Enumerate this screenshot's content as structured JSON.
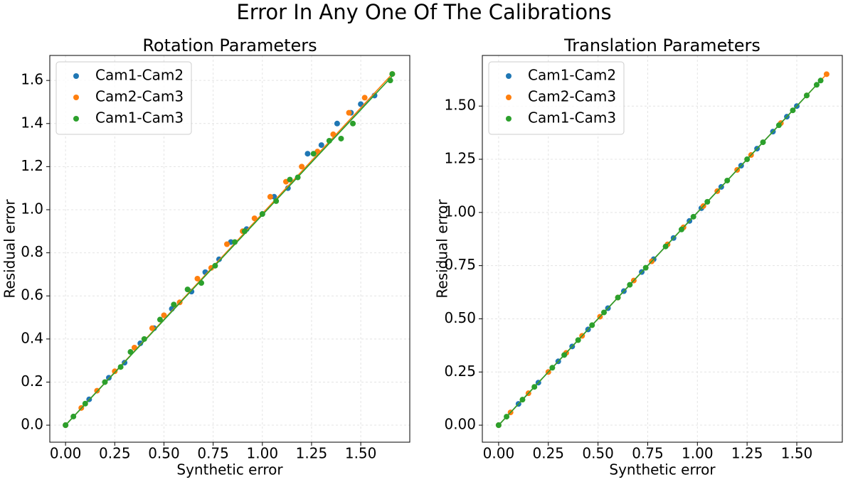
{
  "title": "Error In Any One Of The Calibrations",
  "chart_data": [
    {
      "type": "scatter",
      "title": "Rotation Parameters",
      "x_label": "Synthetic error",
      "y_label": "Residual error",
      "xlim": [
        -0.08,
        1.749
      ],
      "ylim": [
        -0.079,
        1.716
      ],
      "xticks": [
        {
          "value": 0,
          "label": "0.00"
        },
        0.25,
        {
          "value": 0.5,
          "label": "0.50"
        },
        0.75,
        {
          "value": 1,
          "label": "1.00"
        },
        1.25,
        {
          "value": 1.5,
          "label": "1.50"
        }
      ],
      "yticks": [
        {
          "value": 0,
          "label": "0.0"
        },
        0.2,
        0.4,
        0.6,
        0.8,
        {
          "value": 1,
          "label": "1.0"
        },
        1.2,
        1.4,
        1.6
      ],
      "grid": true,
      "legend": "upper left",
      "series": [
        {
          "name": "Cam1-Cam2",
          "color": "#1f77b4",
          "x": [
            0,
            0.12,
            0.22,
            0.3,
            0.38,
            0.45,
            0.54,
            0.64,
            0.71,
            0.78,
            0.84,
            0.92,
            1.0,
            1.06,
            1.13,
            1.23,
            1.3,
            1.38,
            1.45,
            1.5,
            1.57
          ],
          "values": [
            0,
            0.12,
            0.22,
            0.29,
            0.38,
            0.45,
            0.54,
            0.62,
            0.71,
            0.77,
            0.85,
            0.91,
            0.98,
            1.06,
            1.1,
            1.26,
            1.3,
            1.4,
            1.45,
            1.49,
            1.53
          ],
          "fit": {
            "x": [
              0,
              1.57
            ],
            "y": [
              0,
              1.54
            ]
          }
        },
        {
          "name": "Cam2-Cam3",
          "color": "#ff7f0e",
          "x": [
            0,
            0.08,
            0.16,
            0.25,
            0.35,
            0.44,
            0.5,
            0.58,
            0.67,
            0.74,
            0.82,
            0.9,
            0.96,
            1.04,
            1.12,
            1.2,
            1.28,
            1.36,
            1.44,
            1.52,
            1.66
          ],
          "values": [
            0,
            0.08,
            0.16,
            0.25,
            0.36,
            0.45,
            0.51,
            0.57,
            0.68,
            0.73,
            0.84,
            0.9,
            0.96,
            1.06,
            1.13,
            1.2,
            1.27,
            1.35,
            1.45,
            1.52,
            1.63
          ],
          "fit": {
            "x": [
              0,
              1.66
            ],
            "y": [
              0,
              1.63
            ]
          }
        },
        {
          "name": "Cam1-Cam3",
          "color": "#2ca02c",
          "x": [
            0,
            0.04,
            0.1,
            0.2,
            0.28,
            0.33,
            0.4,
            0.48,
            0.55,
            0.62,
            0.69,
            0.76,
            0.86,
            0.91,
            1.0,
            1.07,
            1.14,
            1.18,
            1.26,
            1.34,
            1.4,
            1.46,
            1.65,
            1.66
          ],
          "values": [
            0,
            0.04,
            0.1,
            0.2,
            0.27,
            0.34,
            0.4,
            0.49,
            0.56,
            0.63,
            0.66,
            0.74,
            0.85,
            0.9,
            0.98,
            1.04,
            1.14,
            1.15,
            1.26,
            1.32,
            1.33,
            1.4,
            1.6,
            1.63
          ],
          "fit": {
            "x": [
              0,
              1.66
            ],
            "y": [
              0,
              1.62
            ]
          }
        }
      ]
    },
    {
      "type": "scatter",
      "title": "Translation Parameters",
      "x_label": "Synthetic error",
      "y_label": "Residual error",
      "xlim": [
        -0.082,
        1.729
      ],
      "ylim": [
        -0.08,
        1.738
      ],
      "xticks": [
        {
          "value": 0,
          "label": "0.00"
        },
        0.25,
        {
          "value": 0.5,
          "label": "0.50"
        },
        0.75,
        {
          "value": 1,
          "label": "1.00"
        },
        1.25,
        {
          "value": 1.5,
          "label": "1.50"
        }
      ],
      "yticks": [
        {
          "value": 0,
          "label": "0.00"
        },
        0.25,
        {
          "value": 0.5,
          "label": "0.50"
        },
        0.75,
        {
          "value": 1,
          "label": "1.00"
        },
        1.25,
        {
          "value": 1.5,
          "label": "1.50"
        }
      ],
      "grid": true,
      "legend": "upper left",
      "series": [
        {
          "name": "Cam1-Cam2",
          "color": "#1f77b4",
          "x": [
            0,
            0.1,
            0.2,
            0.3,
            0.37,
            0.45,
            0.55,
            0.63,
            0.72,
            0.78,
            0.88,
            0.96,
            1.02,
            1.12,
            1.22,
            1.3,
            1.38,
            1.45,
            1.5
          ],
          "values": [
            0,
            0.1,
            0.2,
            0.3,
            0.37,
            0.45,
            0.55,
            0.63,
            0.72,
            0.78,
            0.88,
            0.96,
            1.02,
            1.12,
            1.22,
            1.3,
            1.38,
            1.45,
            1.5
          ],
          "fit": {
            "x": [
              0,
              1.55
            ],
            "y": [
              0,
              1.55
            ]
          }
        },
        {
          "name": "Cam2-Cam3",
          "color": "#ff7f0e",
          "x": [
            0,
            0.06,
            0.15,
            0.25,
            0.34,
            0.42,
            0.51,
            0.6,
            0.68,
            0.77,
            0.85,
            0.93,
            1.03,
            1.1,
            1.2,
            1.27,
            1.42,
            1.55,
            1.65
          ],
          "values": [
            0,
            0.06,
            0.15,
            0.25,
            0.34,
            0.42,
            0.51,
            0.6,
            0.68,
            0.77,
            0.85,
            0.93,
            1.03,
            1.1,
            1.2,
            1.27,
            1.42,
            1.55,
            1.65
          ],
          "fit": {
            "x": [
              0,
              1.65
            ],
            "y": [
              0,
              1.65
            ]
          }
        },
        {
          "name": "Cam1-Cam3",
          "color": "#2ca02c",
          "x": [
            0,
            0.04,
            0.12,
            0.18,
            0.27,
            0.33,
            0.4,
            0.47,
            0.53,
            0.6,
            0.66,
            0.74,
            0.84,
            0.92,
            0.98,
            1.05,
            1.15,
            1.25,
            1.33,
            1.41,
            1.48,
            1.55,
            1.6,
            1.62
          ],
          "values": [
            0,
            0.04,
            0.12,
            0.18,
            0.27,
            0.33,
            0.4,
            0.47,
            0.53,
            0.6,
            0.66,
            0.74,
            0.84,
            0.92,
            0.98,
            1.05,
            1.15,
            1.25,
            1.33,
            1.41,
            1.48,
            1.55,
            1.6,
            1.62
          ],
          "fit": {
            "x": [
              0,
              1.62
            ],
            "y": [
              0,
              1.62
            ]
          }
        }
      ]
    }
  ]
}
